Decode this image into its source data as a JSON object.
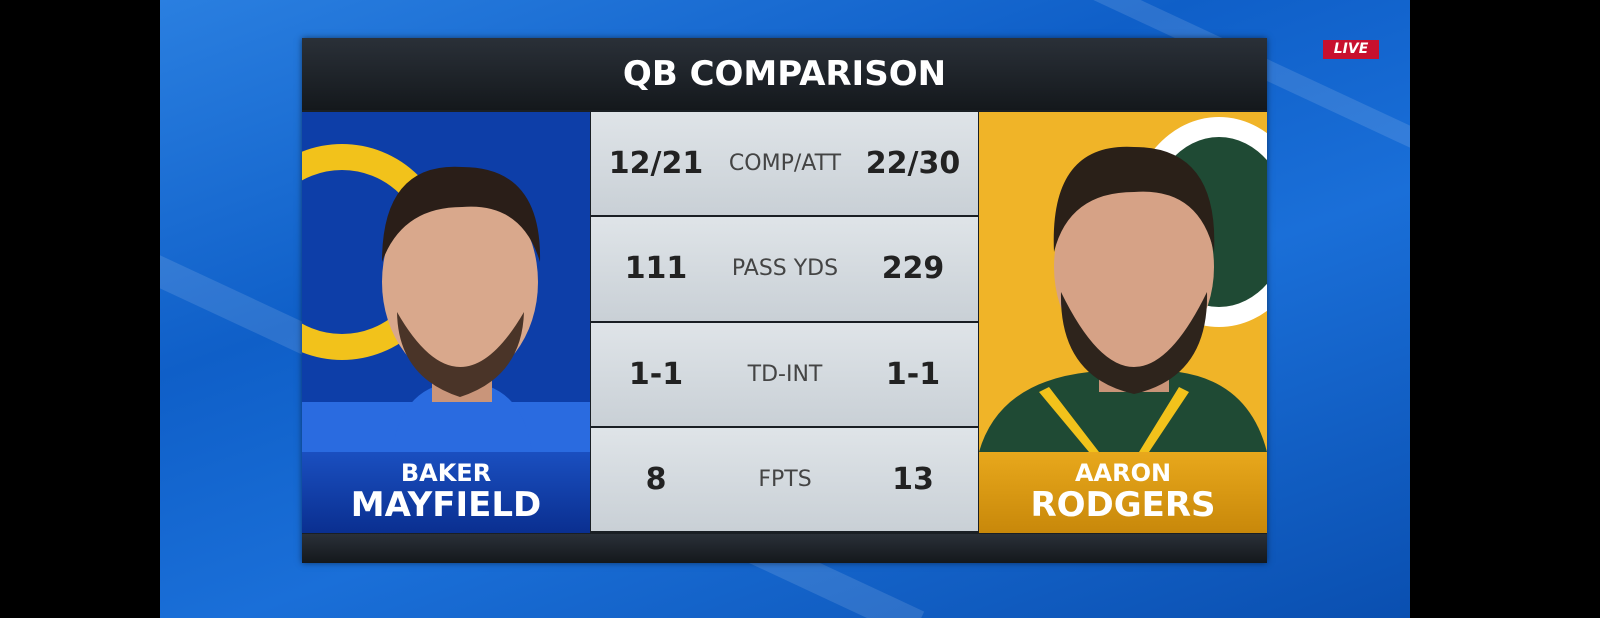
{
  "badge": "LIVE",
  "header": {
    "title": "QB COMPARISON"
  },
  "players": [
    {
      "first_name": "BAKER",
      "last_name": "MAYFIELD"
    },
    {
      "first_name": "AARON",
      "last_name": "RODGERS"
    }
  ],
  "stats": {
    "rows": [
      {
        "left": "12/21",
        "label": "COMP/ATT",
        "right": "22/30"
      },
      {
        "left": "111",
        "label": "PASS YDS",
        "right": "229"
      },
      {
        "left": "1-1",
        "label": "TD-INT",
        "right": "1-1"
      },
      {
        "left": "8",
        "label": "FPTS",
        "right": "13"
      }
    ]
  }
}
